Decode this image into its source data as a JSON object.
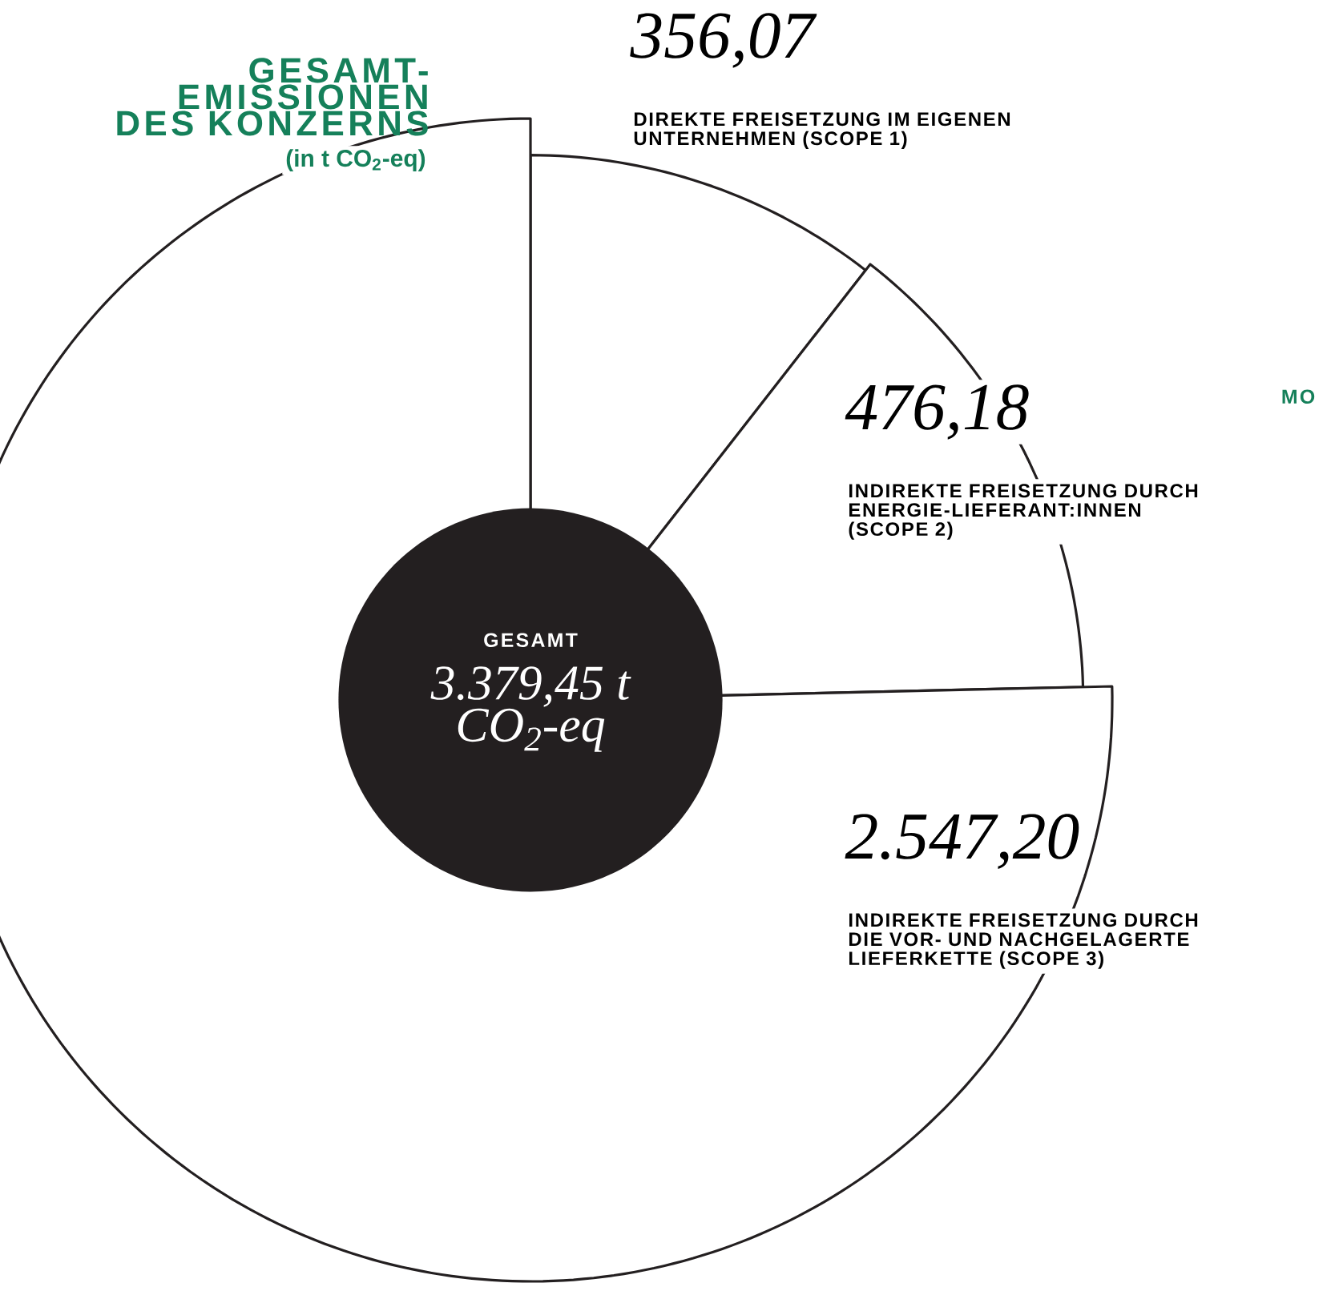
{
  "chart_data": {
    "type": "donut",
    "title": "GESAMT-EMISSIONEN DES KONZERNS",
    "subtitle": "(in t CO$_{2}$-eq)",
    "categories": [
      "DIREKTE FREISETZUNG IM EIGENEN UNTERNEHMEN (SCOPE 1)",
      "INDIREKTE FREISETZUNG DURCH ENERGIE-LIEFERANT:INNEN (SCOPE 2)",
      "INDIREKTE FREISETZUNG DURCH DIE VOR- UND NACHGELAGERTE LIEFERKETTE (SCOPE 3)"
    ],
    "values": [
      356.07,
      476.18,
      2547.2
    ],
    "value_labels": [
      "356,07",
      "476,18",
      "2.547,20"
    ],
    "colors": [
      "#231f20",
      "#231f20",
      "#231f20"
    ],
    "annotations": [
      "GESAMT",
      "3.379,45 t CO$_{2}$-eq",
      "MO"
    ]
  }
}
